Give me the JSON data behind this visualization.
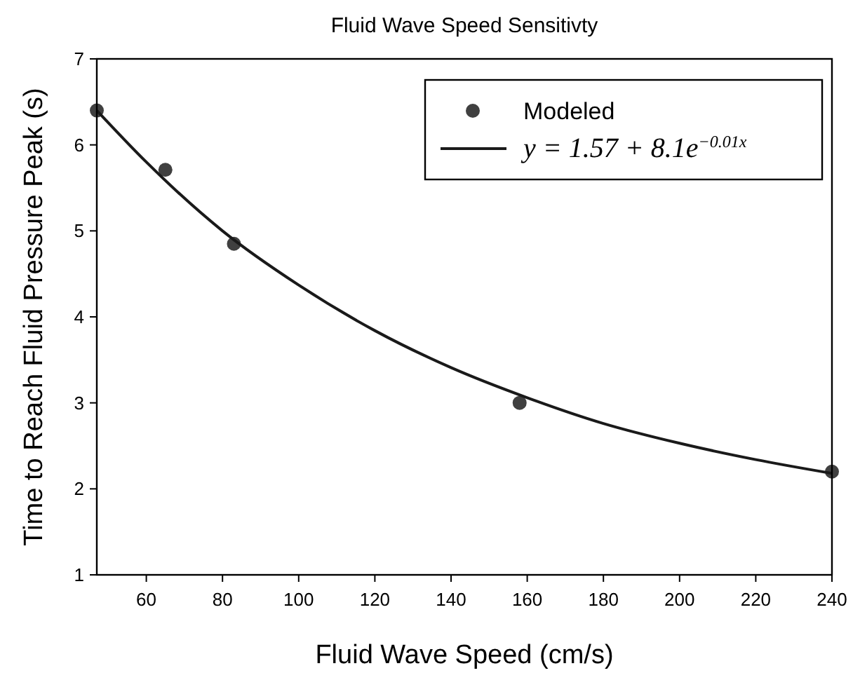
{
  "chart_data": {
    "type": "scatter",
    "title": "Fluid Wave Speed Sensitivty",
    "xlabel": "Fluid Wave Speed (cm/s)",
    "ylabel": "Time to Reach Fluid Pressure Peak (s)",
    "xlim": [
      47,
      240
    ],
    "xticks": [
      60,
      80,
      100,
      120,
      140,
      160,
      180,
      200,
      220,
      240
    ],
    "ylim": [
      1,
      7
    ],
    "yticks": [
      1,
      2,
      3,
      4,
      5,
      6,
      7
    ],
    "grid": false,
    "legend": "top right",
    "marker": "circle",
    "series": [
      {
        "name": "Modeled",
        "color": "#404040",
        "x": [
          47,
          65,
          83,
          158,
          240
        ],
        "values": [
          6.4,
          5.71,
          4.85,
          3.0,
          2.2
        ]
      },
      {
        "name": "y = 1.57 + 8.1e$^{−0.01x}$",
        "type": "line",
        "color": "#1a1a1a",
        "marker": "none",
        "line_style": "solid",
        "x": [
          47,
          60,
          80,
          100,
          120,
          140,
          160,
          180,
          200,
          220,
          240
        ],
        "values": [
          6.4,
          5.8,
          5.0,
          4.37,
          3.84,
          3.41,
          3.06,
          2.76,
          2.53,
          2.34,
          2.18
        ]
      }
    ]
  }
}
